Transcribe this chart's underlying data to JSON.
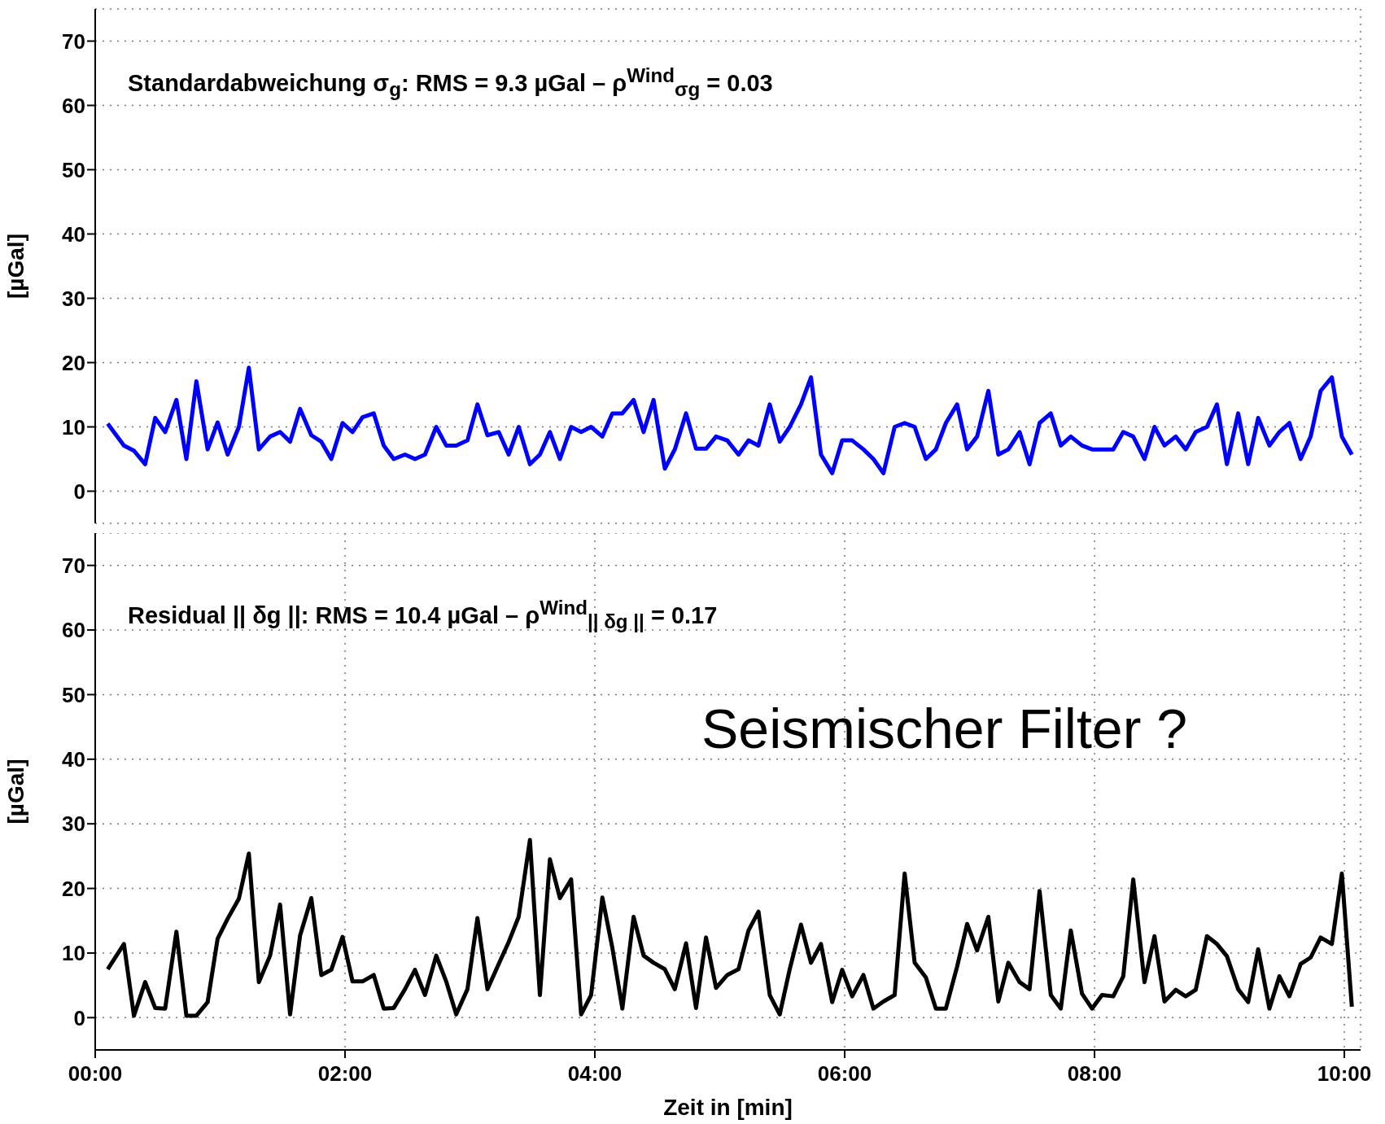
{
  "chart_data": [
    {
      "type": "line",
      "ylabel": "[µGal]",
      "annotations": [
        "Standardabweichung σ$_{g}$: RMS = 9.3 µGal – ρ$^{Wind}$$_{σg}$ = 0.03"
      ],
      "x": [
        0.1,
        0.23,
        0.31,
        0.4,
        0.48,
        0.56,
        0.65,
        0.73,
        0.81,
        0.9,
        0.98,
        1.06,
        1.15,
        1.23,
        1.31,
        1.4,
        1.48,
        1.56,
        1.64,
        1.73,
        1.81,
        1.89,
        1.98,
        2.06,
        2.14,
        2.23,
        2.31,
        2.39,
        2.48,
        2.56,
        2.64,
        2.73,
        2.81,
        2.89,
        2.98,
        3.06,
        3.14,
        3.23,
        3.31,
        3.39,
        3.48,
        3.56,
        3.64,
        3.72,
        3.81,
        3.89,
        3.97,
        4.06,
        4.14,
        4.22,
        4.31,
        4.39,
        4.47,
        4.56,
        4.64,
        4.73,
        4.81,
        4.89,
        4.97,
        5.06,
        5.15,
        5.23,
        5.31,
        5.4,
        5.48,
        5.56,
        5.65,
        5.73,
        5.81,
        5.9,
        5.98,
        6.06,
        6.15,
        6.23,
        6.31,
        6.4,
        6.48,
        6.56,
        6.65,
        6.73,
        6.81,
        6.9,
        6.98,
        7.06,
        7.15,
        7.23,
        7.31,
        7.4,
        7.48,
        7.56,
        7.65,
        7.73,
        7.81,
        7.9,
        7.98,
        8.06,
        8.15,
        8.23,
        8.31,
        8.4,
        8.48,
        8.56,
        8.65,
        8.73,
        8.81,
        8.9,
        8.98,
        9.06,
        9.15,
        9.23,
        9.31,
        9.4,
        9.48,
        9.56,
        9.65,
        9.73,
        9.81,
        9.9,
        9.98,
        10.06
      ],
      "series": [
        {
          "color": "#0000ff",
          "values": [
            10.5,
            7.1,
            6.3,
            4.2,
            11.4,
            9.2,
            14.2,
            5.0,
            17.1,
            6.5,
            10.7,
            5.7,
            10,
            19.2,
            6.5,
            8.5,
            9.2,
            7.7,
            12.8,
            8.7,
            7.7,
            5.0,
            10.6,
            9.2,
            11.5,
            12.1,
            7.1,
            5.0,
            5.7,
            5.0,
            5.7,
            10,
            7.1,
            7.1,
            7.9,
            13.5,
            8.7,
            9.2,
            5.7,
            10,
            4.2,
            5.7,
            9.2,
            5.0,
            10,
            9.2,
            10,
            8.5,
            12.1,
            12.1,
            14.2,
            9.2,
            14.2,
            3.5,
            6.5,
            12.1,
            6.6,
            6.6,
            8.5,
            7.9,
            5.7,
            7.9,
            7.1,
            13.5,
            7.7,
            10,
            13.5,
            17.7,
            5.7,
            2.8,
            7.9,
            7.9,
            6.5,
            5.0,
            2.8,
            10,
            10.6,
            10,
            5.0,
            6.5,
            10.6,
            13.5,
            6.5,
            8.5,
            15.6,
            5.7,
            6.5,
            9.2,
            4.2,
            10.6,
            12.1,
            7.1,
            8.5,
            7.1,
            6.5,
            6.5,
            6.5,
            9.2,
            8.5,
            5.0,
            10,
            7.1,
            8.5,
            6.5,
            9.2,
            10,
            13.5,
            4.2,
            12.1,
            4.2,
            11.4,
            7.1,
            9.2,
            10.6,
            5.0,
            8.5,
            15.6,
            17.7,
            8.5,
            5.7
          ]
        }
      ],
      "xlim": [
        0,
        10.13
      ],
      "xticks": [
        {
          "value": 0,
          "label": null
        },
        {
          "value": 2,
          "label": null
        },
        {
          "value": 4,
          "label": null
        },
        {
          "value": 6,
          "label": null
        },
        {
          "value": 8,
          "label": null
        },
        {
          "value": 10,
          "label": null
        }
      ],
      "ylim": [
        -5,
        75
      ],
      "yticks": [
        0,
        10,
        20,
        30,
        40,
        50,
        60,
        70
      ],
      "grid": true,
      "line_style": "solid",
      "tick_labels": "y"
    },
    {
      "type": "line",
      "xlabel": "Zeit in [min]",
      "ylabel": "[µGal]",
      "annotations": [
        "Residual || δg ||: RMS = 10.4 µGal – ρ$^{Wind}$$_{|| δg ||}$ = 0.17",
        "Seismischer Filter ?"
      ],
      "x": [
        0.1,
        0.23,
        0.31,
        0.4,
        0.48,
        0.56,
        0.65,
        0.73,
        0.81,
        0.9,
        0.98,
        1.06,
        1.15,
        1.23,
        1.31,
        1.4,
        1.48,
        1.56,
        1.64,
        1.73,
        1.81,
        1.89,
        1.98,
        2.06,
        2.14,
        2.23,
        2.31,
        2.39,
        2.48,
        2.56,
        2.64,
        2.73,
        2.81,
        2.89,
        2.98,
        3.06,
        3.14,
        3.23,
        3.31,
        3.39,
        3.48,
        3.56,
        3.64,
        3.72,
        3.81,
        3.89,
        3.97,
        4.06,
        4.14,
        4.22,
        4.31,
        4.39,
        4.47,
        4.56,
        4.64,
        4.73,
        4.81,
        4.89,
        4.97,
        5.06,
        5.15,
        5.23,
        5.31,
        5.4,
        5.48,
        5.56,
        5.65,
        5.73,
        5.81,
        5.9,
        5.98,
        6.06,
        6.15,
        6.23,
        6.31,
        6.4,
        6.48,
        6.56,
        6.65,
        6.73,
        6.81,
        6.9,
        6.98,
        7.06,
        7.15,
        7.23,
        7.31,
        7.4,
        7.48,
        7.56,
        7.65,
        7.73,
        7.81,
        7.9,
        7.98,
        8.06,
        8.15,
        8.23,
        8.31,
        8.4,
        8.48,
        8.56,
        8.65,
        8.73,
        8.81,
        8.9,
        8.98,
        9.06,
        9.15,
        9.23,
        9.31,
        9.4,
        9.48,
        9.56,
        9.65,
        9.73,
        9.81,
        9.9,
        9.98,
        10.06
      ],
      "series": [
        {
          "color": "#000000",
          "values": [
            7.5,
            11.4,
            0.3,
            5.5,
            1.5,
            1.4,
            13.3,
            0.3,
            0.3,
            2.4,
            12.2,
            15.3,
            18.4,
            25.4,
            5.5,
            9.6,
            17.5,
            0.5,
            12.7,
            18.5,
            6.6,
            7.4,
            12.5,
            5.6,
            5.6,
            6.6,
            1.4,
            1.5,
            4.4,
            7.4,
            3.5,
            9.6,
            5.6,
            0.5,
            4.4,
            15.4,
            4.4,
            8.3,
            11.7,
            15.6,
            27.5,
            3.5,
            24.5,
            18.5,
            21.4,
            0.5,
            3.5,
            18.6,
            10.8,
            1.4,
            15.6,
            9.6,
            8.5,
            7.5,
            4.4,
            11.5,
            1.5,
            12.4,
            4.6,
            6.6,
            7.5,
            13.5,
            16.4,
            3.5,
            0.5,
            7.5,
            14.4,
            8.5,
            11.4,
            2.4,
            7.4,
            3.3,
            6.6,
            1.4,
            2.5,
            3.5,
            22.3,
            8.5,
            6.2,
            1.4,
            1.4,
            7.9,
            14.5,
            10.4,
            15.6,
            2.5,
            8.5,
            5.5,
            4.4,
            19.6,
            3.5,
            1.4,
            13.5,
            3.7,
            1.4,
            3.5,
            3.3,
            6.4,
            21.4,
            5.5,
            12.6,
            2.5,
            4.3,
            3.3,
            4.3,
            12.6,
            11.4,
            9.5,
            4.4,
            2.4,
            10.6,
            1.4,
            6.4,
            3.3,
            8.3,
            9.3,
            12.4,
            11.4,
            22.3,
            1.7
          ]
        }
      ],
      "xlim": [
        0,
        10.13
      ],
      "xticks": [
        {
          "value": 0,
          "label": "00:00"
        },
        {
          "value": 2,
          "label": "02:00"
        },
        {
          "value": 4,
          "label": "04:00"
        },
        {
          "value": 6,
          "label": "06:00"
        },
        {
          "value": 8,
          "label": "08:00"
        },
        {
          "value": 10,
          "label": "10:00"
        }
      ],
      "ylim": [
        -5,
        75
      ],
      "yticks": [
        0,
        10,
        20,
        30,
        40,
        50,
        60,
        70
      ],
      "grid": true,
      "line_style": "solid"
    }
  ]
}
